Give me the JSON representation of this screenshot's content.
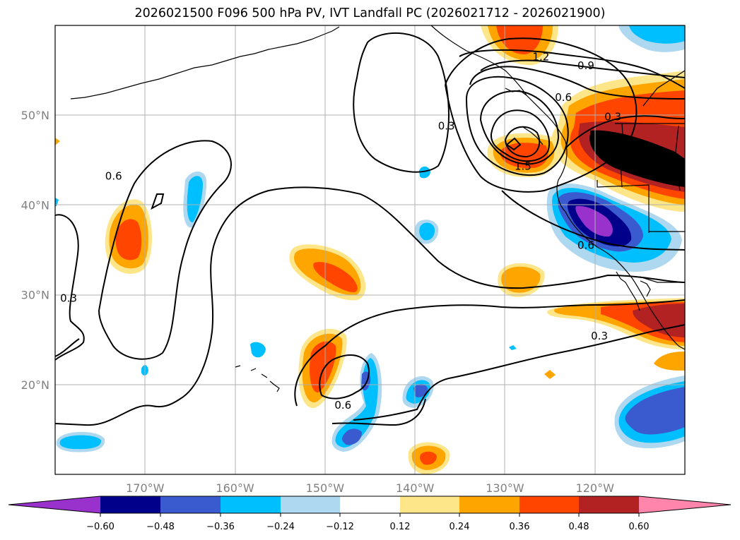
{
  "title": "2026021500 F096 500 hPa PV, IVT Landfall PC (2026021712 - 2026021900)",
  "colors": {
    "neg_extend": "#9932cc",
    "neg_060": "#00008b",
    "neg_048": "#3a5bd0",
    "neg_036": "#00bfff",
    "neg_024": "#add8f0",
    "neutral": "#ffffff",
    "pos_012": "#fde68a",
    "pos_024": "#ffa500",
    "pos_036": "#ff4500",
    "pos_048": "#b22222",
    "pos_extend": "#ff85ad",
    "contour": "#000000",
    "grid": "#b0b0b0",
    "axis_text": "#808080"
  },
  "map": {
    "lon_range": [
      -180,
      -110
    ],
    "lat_range": [
      10,
      60
    ],
    "lon_ticks": [
      {
        "value": -170,
        "label": "170°W"
      },
      {
        "value": -160,
        "label": "160°W"
      },
      {
        "value": -150,
        "label": "150°W"
      },
      {
        "value": -140,
        "label": "140°W"
      },
      {
        "value": -130,
        "label": "130°W"
      },
      {
        "value": -120,
        "label": "120°W"
      }
    ],
    "lat_ticks": [
      {
        "value": 50,
        "label": "50°N"
      },
      {
        "value": 40,
        "label": "40°N"
      },
      {
        "value": 30,
        "label": "30°N"
      },
      {
        "value": 20,
        "label": "20°N"
      }
    ],
    "contour_labels": [
      {
        "text": "1.2",
        "lon": -126.0,
        "lat": 56.5
      },
      {
        "text": "0.9",
        "lon": -121.0,
        "lat": 55.5
      },
      {
        "text": "0.6",
        "lon": -123.5,
        "lat": 52.0
      },
      {
        "text": "0.3",
        "lon": -118.0,
        "lat": 49.8
      },
      {
        "text": "0.3",
        "lon": -136.5,
        "lat": 48.8
      },
      {
        "text": "1.5",
        "lon": -128.0,
        "lat": 44.3
      },
      {
        "text": "0.6",
        "lon": -173.5,
        "lat": 43.2
      },
      {
        "text": "0.6",
        "lon": -121.0,
        "lat": 35.5
      },
      {
        "text": "0.3",
        "lon": -178.5,
        "lat": 29.6
      },
      {
        "text": "0.3",
        "lon": -119.5,
        "lat": 25.4
      },
      {
        "text": "0.6",
        "lon": -148.0,
        "lat": 17.7
      }
    ]
  },
  "colorbar": {
    "ticks": [
      "−0.60",
      "−0.48",
      "−0.36",
      "−0.24",
      "−0.12",
      "0.12",
      "0.24",
      "0.36",
      "0.48",
      "0.60"
    ]
  }
}
